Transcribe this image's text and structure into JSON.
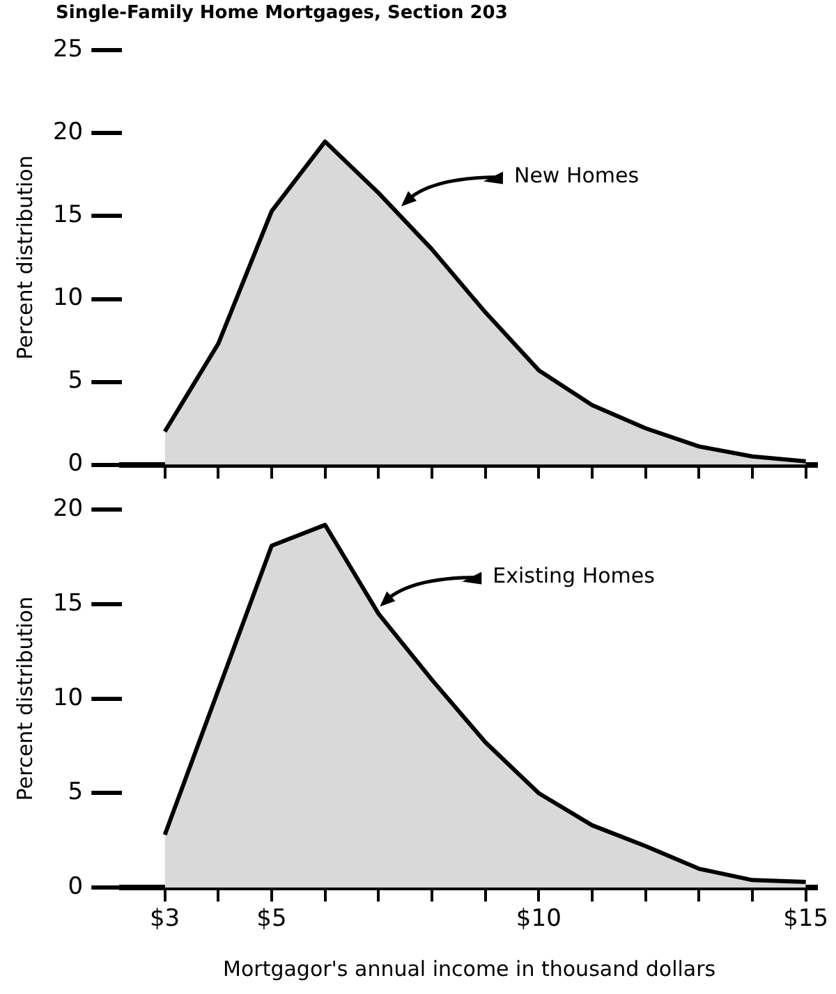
{
  "chart_data": [
    {
      "type": "area",
      "title": "Single-Family Home Mortgages, Section 203",
      "ylabel": "Percent distribution",
      "series": [
        {
          "color": "#d9d9d9",
          "x": [
            3,
            4,
            5,
            6,
            7,
            8,
            9,
            10,
            11,
            12,
            13,
            14,
            15
          ],
          "values": [
            2.0,
            7.3,
            15.3,
            19.5,
            16.4,
            13.0,
            9.2,
            5.7,
            3.6,
            2.2,
            1.1,
            0.5,
            0.2
          ]
        }
      ],
      "xlim": [
        2.2,
        15.2
      ],
      "xticks": [
        {
          "value": 3,
          "label": null
        },
        {
          "value": 4,
          "label": null
        },
        {
          "value": 5,
          "label": null
        },
        {
          "value": 6,
          "label": null
        },
        {
          "value": 7,
          "label": null
        },
        {
          "value": 8,
          "label": null
        },
        {
          "value": 9,
          "label": null
        },
        {
          "value": 10,
          "label": null
        },
        {
          "value": 11,
          "label": null
        },
        {
          "value": 12,
          "label": null
        },
        {
          "value": 13,
          "label": null
        },
        {
          "value": 14,
          "label": null
        },
        {
          "value": 15,
          "label": null
        }
      ],
      "ylim": [
        0,
        25
      ],
      "yticks": [
        0,
        5,
        10,
        15,
        20,
        25
      ],
      "tick_labels": "y",
      "grid": false,
      "legend": false,
      "annotations": [
        {
          "text": "New Homes",
          "x": 7.4,
          "y": 15.5
        }
      ]
    },
    {
      "type": "area",
      "xlabel": "Mortgagor's annual income in thousand dollars",
      "ylabel": "Percent distribution",
      "series": [
        {
          "color": "#d9d9d9",
          "x": [
            3,
            5,
            6,
            7,
            8,
            9,
            10,
            11,
            12,
            13,
            14,
            15
          ],
          "values": [
            2.8,
            18.1,
            19.2,
            14.5,
            11.0,
            7.7,
            5.0,
            3.3,
            2.2,
            1.0,
            0.4,
            0.3
          ]
        }
      ],
      "xlim": [
        2.2,
        15.2
      ],
      "xticks": [
        {
          "value": 3,
          "label": "$3"
        },
        {
          "value": 4,
          "label": null
        },
        {
          "value": 5,
          "label": "$5"
        },
        {
          "value": 6,
          "label": null
        },
        {
          "value": 7,
          "label": null
        },
        {
          "value": 8,
          "label": null
        },
        {
          "value": 9,
          "label": null
        },
        {
          "value": 10,
          "label": "$10"
        },
        {
          "value": 11,
          "label": null
        },
        {
          "value": 12,
          "label": null
        },
        {
          "value": 13,
          "label": null
        },
        {
          "value": 14,
          "label": null
        },
        {
          "value": 15,
          "label": "$15"
        }
      ],
      "ylim": [
        0,
        20
      ],
      "yticks": [
        0,
        5,
        10,
        15,
        20
      ],
      "grid": false,
      "legend": false,
      "annotations": [
        {
          "text": "Existing Homes",
          "x": 7.0,
          "y": 14.8
        }
      ]
    }
  ]
}
